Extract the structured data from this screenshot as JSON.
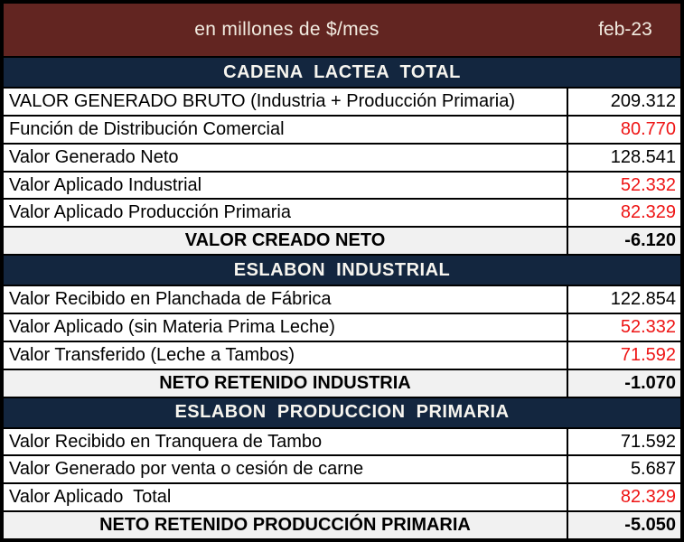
{
  "colors": {
    "maroon": "#622521",
    "navy": "#13263F",
    "red": "#EE1414",
    "summary-bg": "#F1F1F1",
    "cream": "#F2ECE1"
  },
  "chart_data": {
    "type": "table",
    "title": "en millones de $/mes",
    "period": "feb-23",
    "columns": [
      "concepto",
      "valor"
    ],
    "sections": [
      {
        "header": "CADENA  LACTEA  TOTAL",
        "rows": [
          {
            "label": "VALOR GENERADO BRUTO (Industria + Producción Primaria)",
            "value": "209.312",
            "value_color": "black",
            "summary": false
          },
          {
            "label": "Función de Distribución Comercial",
            "value": "80.770",
            "value_color": "red",
            "summary": false
          },
          {
            "label": "Valor Generado Neto",
            "value": "128.541",
            "value_color": "black",
            "summary": false
          },
          {
            "label": "Valor Aplicado Industrial",
            "value": "52.332",
            "value_color": "red",
            "summary": false
          },
          {
            "label": "Valor Aplicado Producción Primaria",
            "value": "82.329",
            "value_color": "red",
            "summary": false
          },
          {
            "label": "VALOR CREADO NETO",
            "value": "-6.120",
            "value_color": "black",
            "summary": true
          }
        ]
      },
      {
        "header": "ESLABON  INDUSTRIAL",
        "rows": [
          {
            "label": "Valor Recibido en Planchada de Fábrica",
            "value": "122.854",
            "value_color": "black",
            "summary": false
          },
          {
            "label": "Valor Aplicado (sin Materia Prima Leche)",
            "value": "52.332",
            "value_color": "red",
            "summary": false
          },
          {
            "label": "Valor Transferido (Leche a Tambos)",
            "value": "71.592",
            "value_color": "red",
            "summary": false
          },
          {
            "label": "NETO RETENIDO INDUSTRIA",
            "value": "-1.070",
            "value_color": "black",
            "summary": true
          }
        ]
      },
      {
        "header": "ESLABON  PRODUCCION  PRIMARIA",
        "rows": [
          {
            "label": "Valor Recibido en Tranquera de Tambo",
            "value": "71.592",
            "value_color": "black",
            "summary": false
          },
          {
            "label": "Valor Generado por venta o cesión de carne",
            "value": "5.687",
            "value_color": "black",
            "summary": false
          },
          {
            "label": "Valor Aplicado  Total",
            "value": "82.329",
            "value_color": "red",
            "summary": false
          },
          {
            "label": "NETO RETENIDO PRODUCCIÓN PRIMARIA",
            "value": "-5.050",
            "value_color": "black",
            "summary": true
          }
        ]
      }
    ]
  }
}
